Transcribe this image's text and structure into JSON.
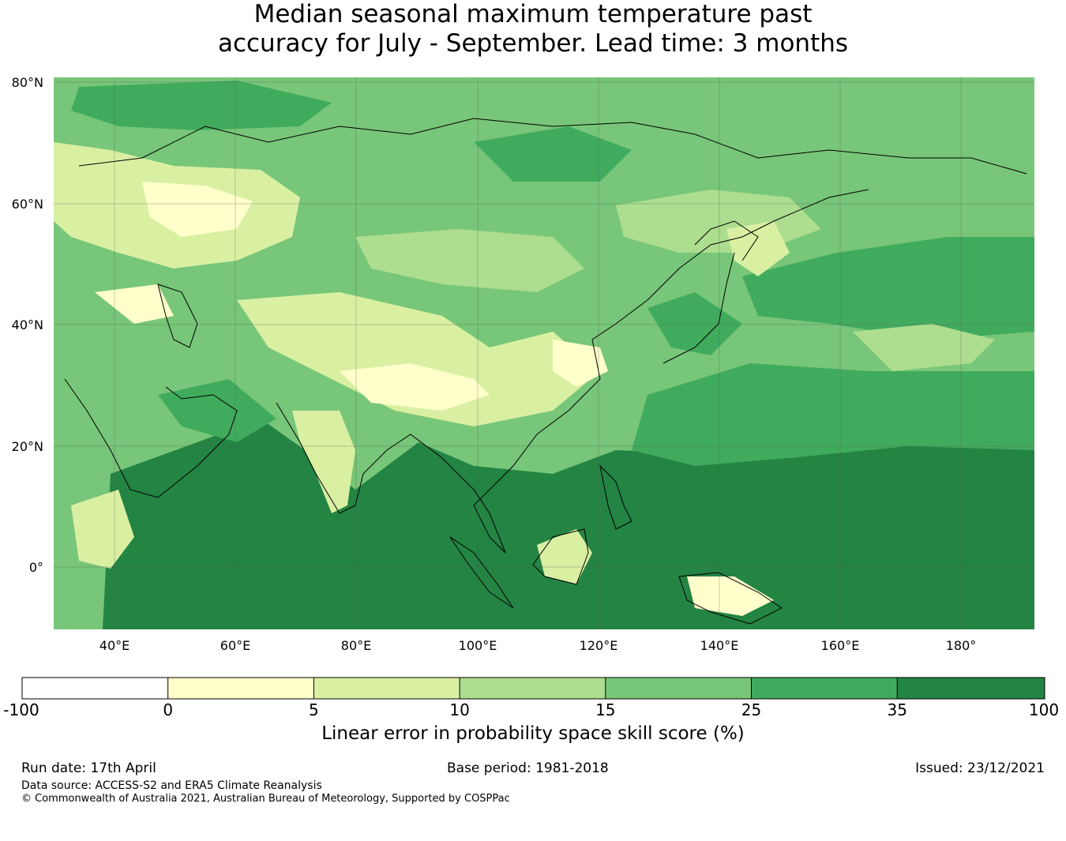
{
  "title": {
    "line1": "Median seasonal maximum temperature past",
    "line2": "accuracy for July - September. Lead time: 3 months"
  },
  "map": {
    "region": "Asia",
    "latitude_labels": [
      "80°N",
      "60°N",
      "40°N",
      "20°N",
      "0°"
    ],
    "longitude_labels": [
      "40°E",
      "60°E",
      "80°E",
      "100°E",
      "120°E",
      "140°E",
      "160°E",
      "180°"
    ],
    "gridlines": true
  },
  "colorbar": {
    "caption": "Linear error in probability space skill score (%)",
    "tick_labels": [
      "-100",
      "0",
      "5",
      "10",
      "15",
      "25",
      "35",
      "100"
    ],
    "bins": [
      {
        "from": "-100",
        "to": "0",
        "color": "#ffffff"
      },
      {
        "from": "0",
        "to": "5",
        "color": "#ffffcc"
      },
      {
        "from": "5",
        "to": "10",
        "color": "#d9f0a3"
      },
      {
        "from": "10",
        "to": "15",
        "color": "#addd8e"
      },
      {
        "from": "15",
        "to": "25",
        "color": "#78c679"
      },
      {
        "from": "25",
        "to": "35",
        "color": "#41ab5d"
      },
      {
        "from": "35",
        "to": "100",
        "color": "#238443"
      }
    ]
  },
  "footer": {
    "run_date": "Run date: 17th April",
    "base_period": "Base period: 1981-2018",
    "issued": "Issued: 23/12/2021",
    "data_source": "Data source: ACCESS-S2 and ERA5 Climate Reanalysis",
    "copyright": "© Commonwealth of Australia 2021, Australian Bureau of Meteorology, Supported by COSPPac"
  }
}
